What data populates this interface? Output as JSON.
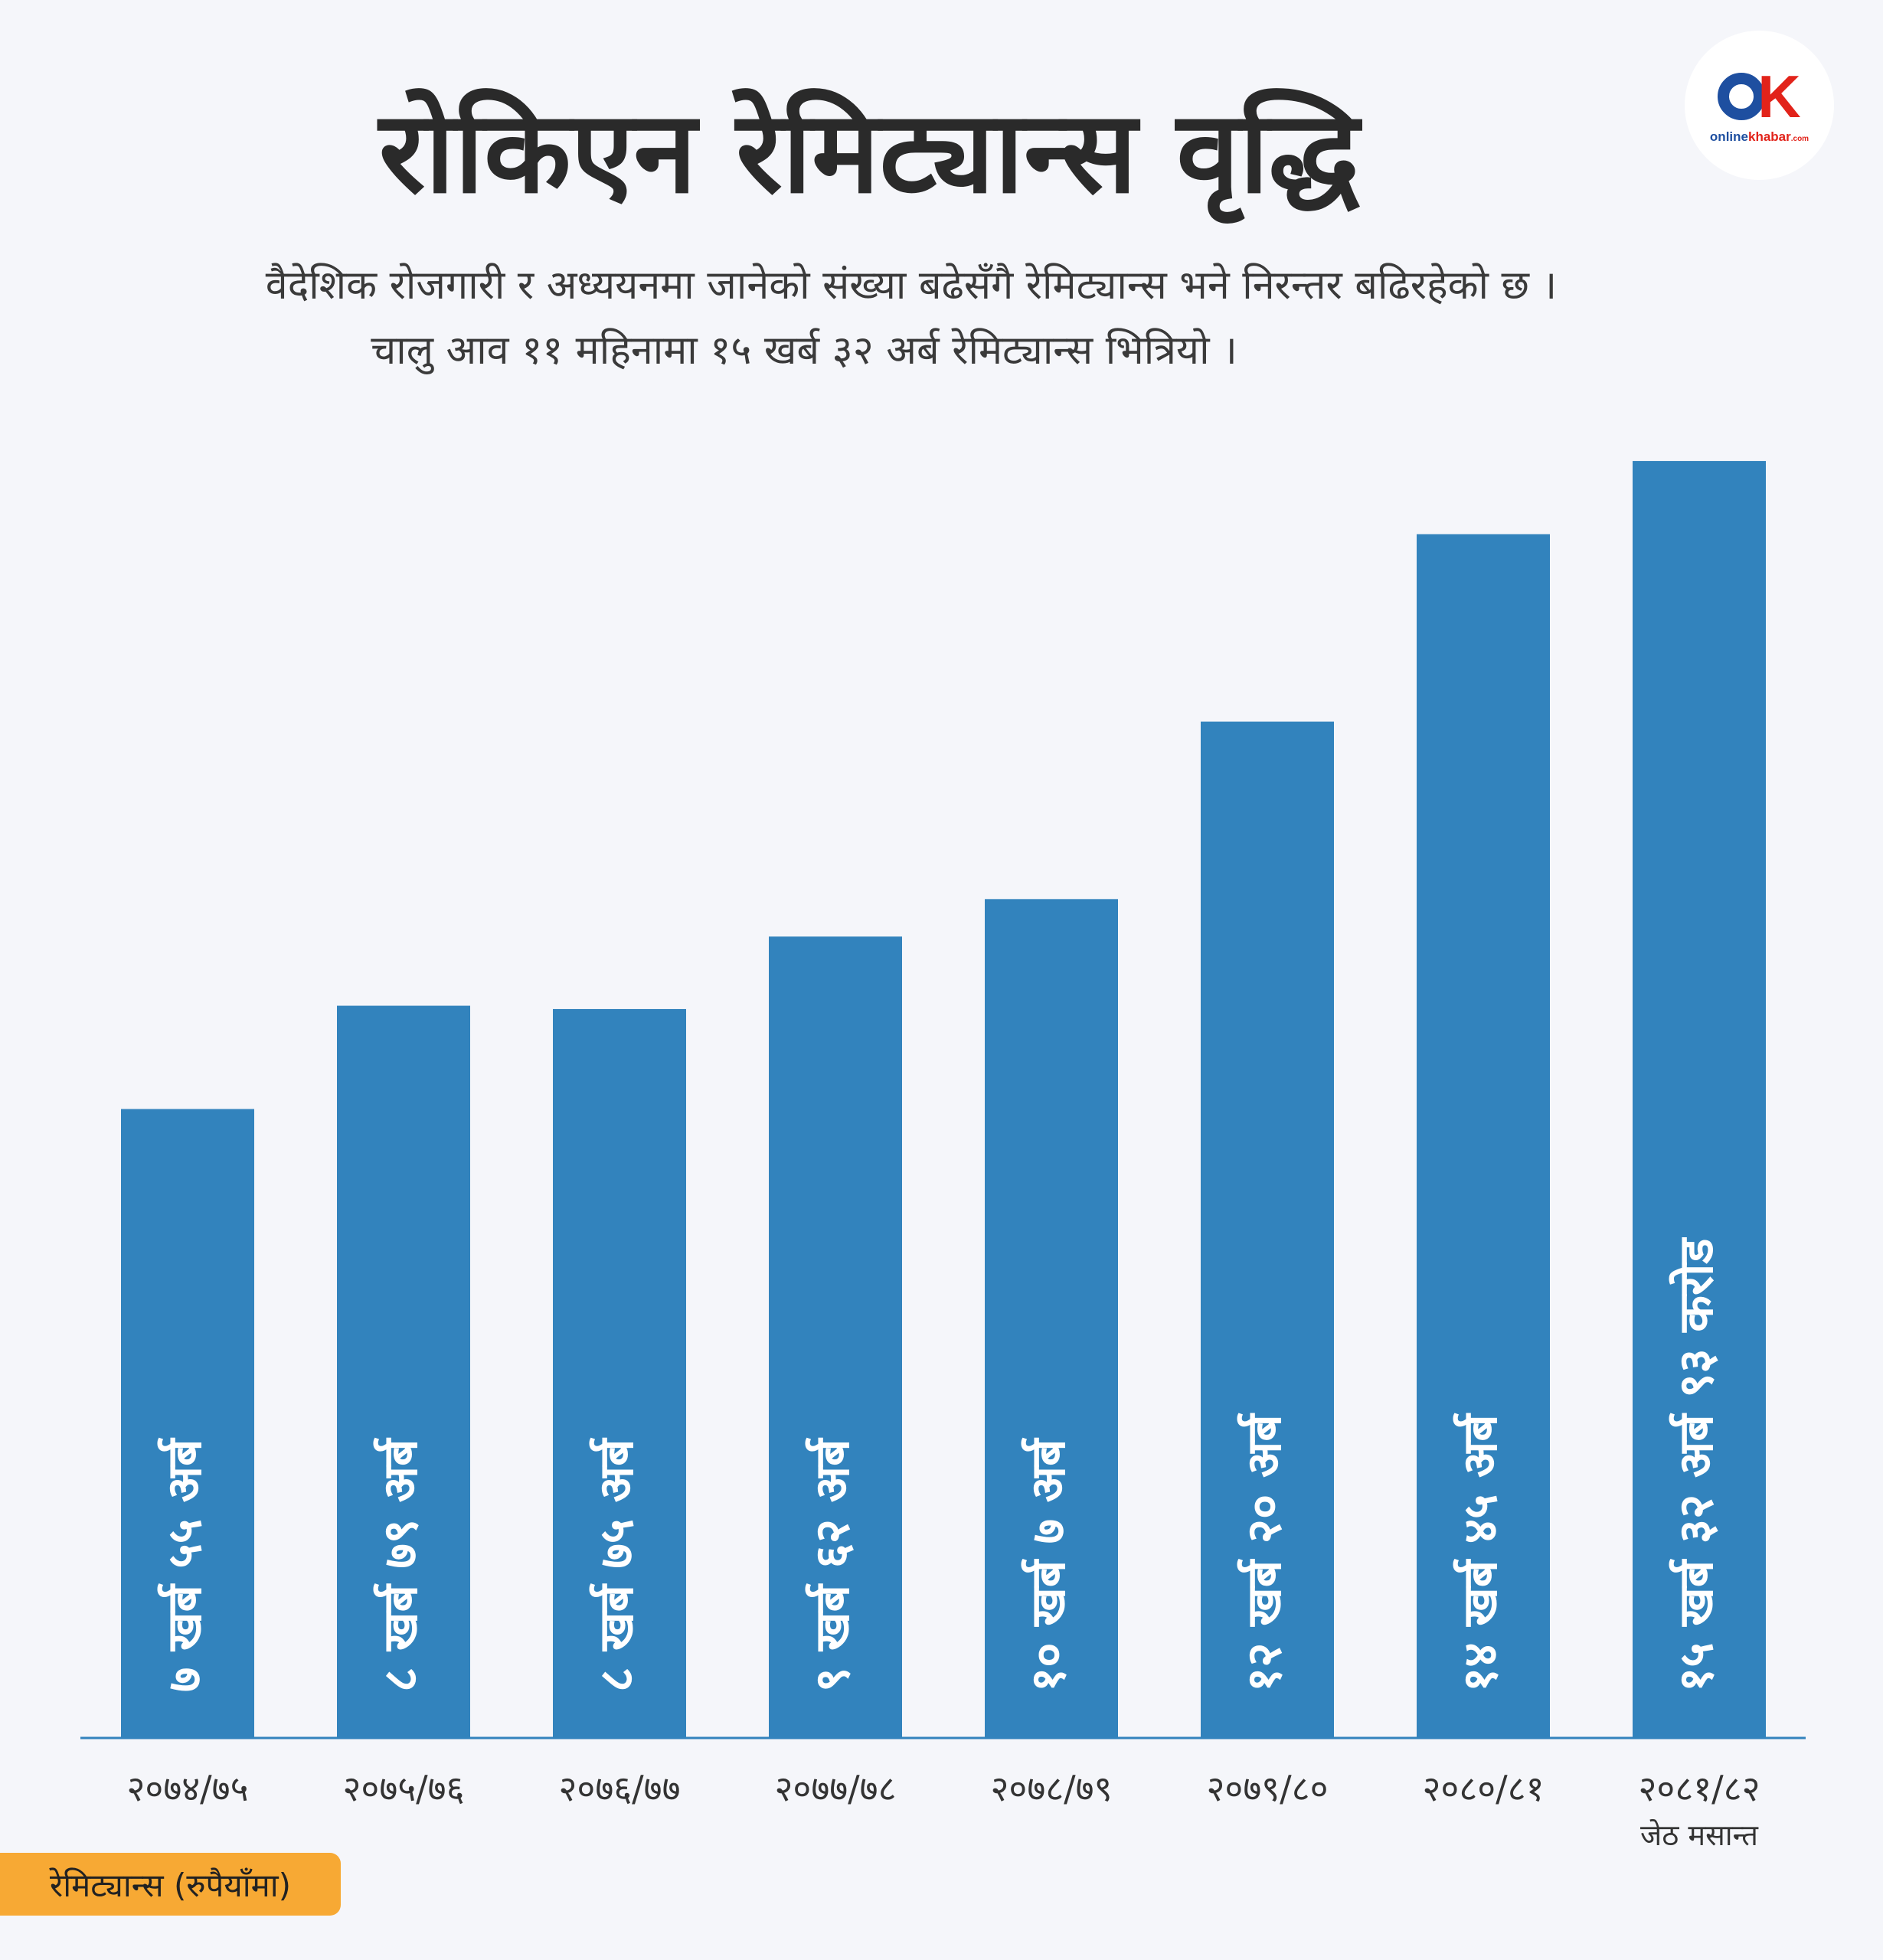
{
  "header": {
    "title": "रोकिएन रेमिट्यान्स वृद्धि",
    "subtitle_line1": "वैदेशिक रोजगारी र अध्ययनमा जानेको संख्या बढेसँगै रेमिट्यान्स भने निरन्तर बढिरहेको छ ।",
    "subtitle_line2": "चालु आव ११ महिनामा १५ खर्ब ३२ अर्ब  रेमिट्यान्स भित्रियो ।"
  },
  "logo": {
    "mark_letter": "K",
    "text_a": "online",
    "text_b": "khabar",
    "text_c": ".com"
  },
  "legend_badge": "रेमिट्यान्स (रुपैयाँमा)",
  "colors": {
    "bar": "#3283bd",
    "axis": "#3283bd",
    "badge": "#f7a934",
    "bar_label": "#ffffff",
    "tick_label": "#333333"
  },
  "chart_data": {
    "type": "bar",
    "categories": [
      "२०७४/७५",
      "२०७५/७६",
      "२०७६/७७",
      "२०७७/७८",
      "२०७८/७९",
      "२०७९/८०",
      "२०८०/८१",
      "२०८१/८२"
    ],
    "category_notes": [
      "",
      "",
      "",
      "",
      "",
      "",
      "",
      "जेठ मसान्त"
    ],
    "values": [
      7.55,
      8.79,
      8.75,
      9.62,
      10.07,
      12.2,
      14.45,
      15.3293
    ],
    "data_labels": [
      "७ खर्ब ५५ अर्ब",
      "८ खर्ब ७९ अर्ब",
      "८ खर्ब ७५ अर्ब",
      "९ खर्ब ६२ अर्ब",
      "१० खर्ब ७ अर्ब",
      "१२ खर्ब २० अर्ब",
      "१४ खर्ब ४५ अर्ब",
      "१५ खर्ब ३२ अर्ब ९३ करोड"
    ],
    "ylim": [
      0,
      15.33
    ],
    "grid": false,
    "legend": "bottom-left"
  }
}
